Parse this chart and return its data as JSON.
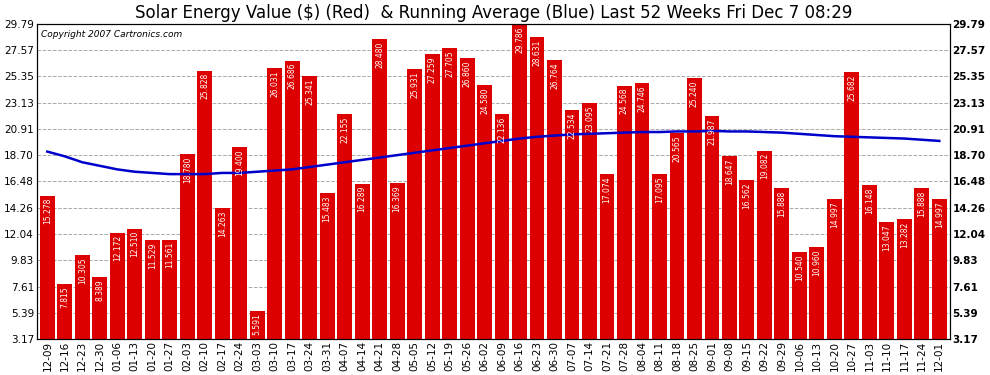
{
  "title": "Solar Energy Value ($) (Red)  & Running Average (Blue) Last 52 Weeks Fri Dec 7 08:29",
  "copyright": "Copyright 2007 Cartronics.com",
  "categories": [
    "12-09",
    "12-16",
    "12-23",
    "12-30",
    "01-06",
    "01-13",
    "01-20",
    "01-27",
    "02-03",
    "02-10",
    "02-17",
    "02-24",
    "03-03",
    "03-10",
    "03-17",
    "03-24",
    "03-31",
    "04-07",
    "04-14",
    "04-21",
    "04-28",
    "05-05",
    "05-12",
    "05-19",
    "05-26",
    "06-02",
    "06-09",
    "06-16",
    "06-23",
    "06-30",
    "07-07",
    "07-14",
    "07-21",
    "07-28",
    "08-04",
    "08-11",
    "08-18",
    "08-25",
    "09-01",
    "09-08",
    "09-15",
    "09-22",
    "09-29",
    "10-06",
    "10-13",
    "10-20",
    "10-27",
    "11-03",
    "11-10",
    "11-17",
    "11-24",
    "12-01"
  ],
  "values": [
    15.278,
    7.815,
    10.305,
    8.389,
    12.172,
    12.51,
    11.529,
    11.561,
    18.78,
    25.828,
    14.263,
    19.4,
    5.591,
    26.031,
    26.686,
    25.341,
    15.483,
    22.155,
    16.289,
    28.48,
    16.369,
    25.931,
    27.259,
    27.705,
    26.86,
    24.58,
    22.136,
    29.786,
    28.631,
    26.764,
    22.534,
    23.095,
    17.074,
    24.568,
    24.746,
    17.095,
    20.565,
    25.24,
    21.987,
    18.647,
    16.562,
    19.082,
    15.888,
    10.54,
    10.96,
    14.997,
    25.682,
    16.148,
    13.047,
    13.282,
    15.888,
    14.997
  ],
  "avg_values": [
    19.0,
    18.6,
    18.1,
    17.8,
    17.5,
    17.3,
    17.2,
    17.1,
    17.1,
    17.1,
    17.2,
    17.2,
    17.3,
    17.4,
    17.5,
    17.7,
    17.9,
    18.1,
    18.3,
    18.5,
    18.7,
    18.9,
    19.1,
    19.3,
    19.5,
    19.7,
    19.9,
    20.1,
    20.25,
    20.35,
    20.45,
    20.5,
    20.55,
    20.6,
    20.65,
    20.65,
    20.7,
    20.7,
    20.75,
    20.7,
    20.7,
    20.65,
    20.6,
    20.5,
    20.4,
    20.3,
    20.25,
    20.2,
    20.15,
    20.1,
    20.0,
    19.9
  ],
  "bar_color": "#dd0000",
  "line_color": "#0000cc",
  "bg_color": "#ffffff",
  "plot_bg_color": "#ffffff",
  "grid_color": "#aaaaaa",
  "yticks": [
    3.17,
    5.39,
    7.61,
    9.83,
    12.04,
    14.26,
    16.48,
    18.7,
    20.91,
    23.13,
    25.35,
    27.57,
    29.79
  ],
  "ylim": [
    3.17,
    29.79
  ],
  "ybase": 3.17,
  "title_fontsize": 12,
  "tick_fontsize": 7.5,
  "value_fontsize": 5.5
}
